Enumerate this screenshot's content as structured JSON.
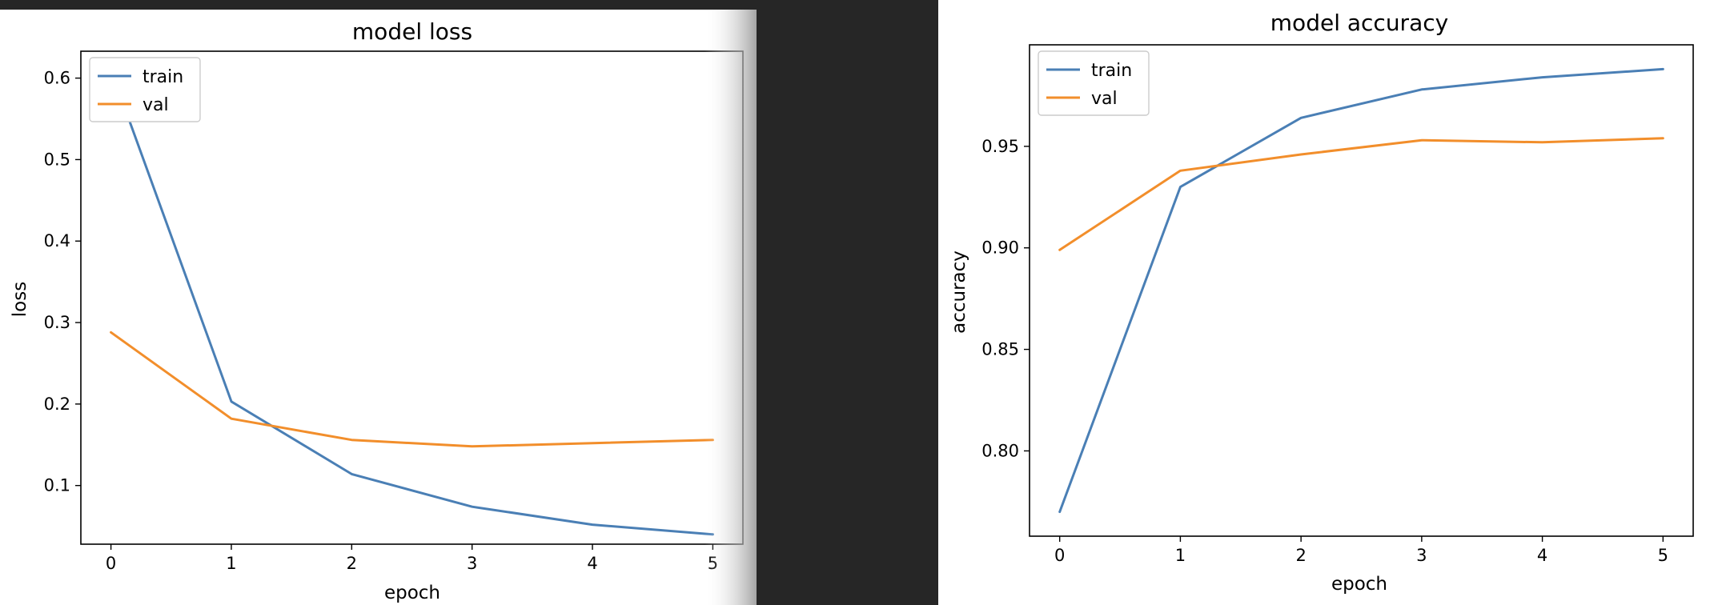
{
  "chart_data": [
    {
      "type": "line",
      "title": "model loss",
      "xlabel": "epoch",
      "ylabel": "loss",
      "x": [
        0,
        1,
        2,
        3,
        4,
        5
      ],
      "xticks": [
        "0",
        "1",
        "2",
        "3",
        "4",
        "5"
      ],
      "xlim": [
        -0.25,
        5.25
      ],
      "yticks": [
        "0.1",
        "0.2",
        "0.3",
        "0.4",
        "0.5",
        "0.6"
      ],
      "ylim": [
        0.028,
        0.633
      ],
      "grid": false,
      "legend_position": "upper left",
      "series": [
        {
          "name": "train",
          "color": "#4a7fb5",
          "values": [
            0.61,
            0.203,
            0.114,
            0.074,
            0.052,
            0.04
          ]
        },
        {
          "name": "val",
          "color": "#f28e2b",
          "values": [
            0.288,
            0.182,
            0.156,
            0.148,
            0.152,
            0.156
          ]
        }
      ]
    },
    {
      "type": "line",
      "title": "model accuracy",
      "xlabel": "epoch",
      "ylabel": "accuracy",
      "x": [
        0,
        1,
        2,
        3,
        4,
        5
      ],
      "xticks": [
        "0",
        "1",
        "2",
        "3",
        "4",
        "5"
      ],
      "xlim": [
        -0.25,
        5.25
      ],
      "yticks": [
        "0.80",
        "0.85",
        "0.90",
        "0.95"
      ],
      "ylim": [
        0.758,
        1.0
      ],
      "grid": false,
      "legend_position": "upper left",
      "series": [
        {
          "name": "train",
          "color": "#4a7fb5",
          "values": [
            0.77,
            0.93,
            0.964,
            0.978,
            0.984,
            0.988
          ]
        },
        {
          "name": "val",
          "color": "#f28e2b",
          "values": [
            0.899,
            0.938,
            0.946,
            0.953,
            0.952,
            0.954
          ]
        }
      ]
    }
  ]
}
